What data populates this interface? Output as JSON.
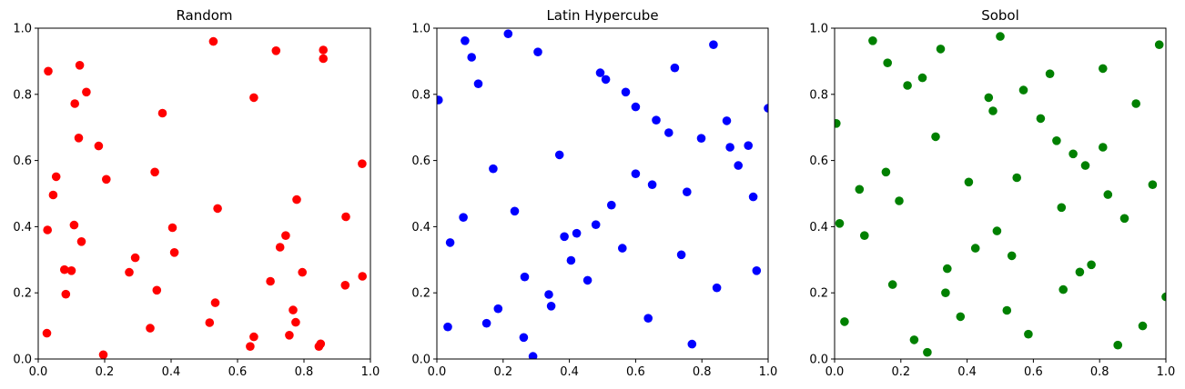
{
  "chart_data": [
    {
      "type": "scatter",
      "title": "Random",
      "color": "#ff0000",
      "xlim": [
        0,
        1
      ],
      "ylim": [
        0,
        1
      ],
      "xticks": [
        "0.0",
        "0.2",
        "0.4",
        "0.6",
        "0.8",
        "1.0"
      ],
      "yticks": [
        "0.0",
        "0.2",
        "0.4",
        "0.6",
        "0.8",
        "1.0"
      ],
      "grid": false,
      "points": [
        [
          0.03,
          0.87
        ],
        [
          0.125,
          0.888
        ],
        [
          0.145,
          0.807
        ],
        [
          0.11,
          0.772
        ],
        [
          0.122,
          0.668
        ],
        [
          0.054,
          0.551
        ],
        [
          0.045,
          0.496
        ],
        [
          0.028,
          0.39
        ],
        [
          0.108,
          0.405
        ],
        [
          0.13,
          0.355
        ],
        [
          0.079,
          0.27
        ],
        [
          0.1,
          0.267
        ],
        [
          0.083,
          0.196
        ],
        [
          0.026,
          0.078
        ],
        [
          0.196,
          0.013
        ],
        [
          0.182,
          0.644
        ],
        [
          0.205,
          0.543
        ],
        [
          0.527,
          0.96
        ],
        [
          0.716,
          0.932
        ],
        [
          0.858,
          0.934
        ],
        [
          0.858,
          0.908
        ],
        [
          0.649,
          0.79
        ],
        [
          0.374,
          0.743
        ],
        [
          0.351,
          0.565
        ],
        [
          0.54,
          0.455
        ],
        [
          0.404,
          0.397
        ],
        [
          0.41,
          0.322
        ],
        [
          0.292,
          0.306
        ],
        [
          0.274,
          0.262
        ],
        [
          0.357,
          0.208
        ],
        [
          0.337,
          0.093
        ],
        [
          0.533,
          0.17
        ],
        [
          0.516,
          0.11
        ],
        [
          0.649,
          0.067
        ],
        [
          0.638,
          0.038
        ],
        [
          0.778,
          0.482
        ],
        [
          0.745,
          0.373
        ],
        [
          0.728,
          0.338
        ],
        [
          0.795,
          0.262
        ],
        [
          0.699,
          0.235
        ],
        [
          0.767,
          0.148
        ],
        [
          0.775,
          0.111
        ],
        [
          0.756,
          0.072
        ],
        [
          0.85,
          0.046
        ],
        [
          0.845,
          0.038
        ],
        [
          0.975,
          0.59
        ],
        [
          0.926,
          0.43
        ],
        [
          0.976,
          0.25
        ],
        [
          0.924,
          0.223
        ]
      ]
    },
    {
      "type": "scatter",
      "title": "Latin Hypercube",
      "color": "#0000ff",
      "xlim": [
        0,
        1
      ],
      "ylim": [
        0,
        1
      ],
      "xticks": [
        "0.0",
        "0.2",
        "0.4",
        "0.6",
        "0.8",
        "1.0"
      ],
      "yticks": [
        "0.0",
        "0.2",
        "0.4",
        "0.6",
        "0.8",
        "1.0"
      ],
      "grid": false,
      "points": [
        [
          0.005,
          0.783
        ],
        [
          0.085,
          0.962
        ],
        [
          0.105,
          0.912
        ],
        [
          0.125,
          0.832
        ],
        [
          0.215,
          0.983
        ],
        [
          0.305,
          0.928
        ],
        [
          0.17,
          0.575
        ],
        [
          0.08,
          0.428
        ],
        [
          0.04,
          0.352
        ],
        [
          0.033,
          0.097
        ],
        [
          0.235,
          0.447
        ],
        [
          0.265,
          0.248
        ],
        [
          0.185,
          0.152
        ],
        [
          0.15,
          0.108
        ],
        [
          0.262,
          0.065
        ],
        [
          0.29,
          0.008
        ],
        [
          0.37,
          0.617
        ],
        [
          0.385,
          0.37
        ],
        [
          0.422,
          0.38
        ],
        [
          0.405,
          0.298
        ],
        [
          0.338,
          0.195
        ],
        [
          0.345,
          0.16
        ],
        [
          0.455,
          0.238
        ],
        [
          0.48,
          0.406
        ],
        [
          0.493,
          0.865
        ],
        [
          0.51,
          0.845
        ],
        [
          0.57,
          0.807
        ],
        [
          0.6,
          0.762
        ],
        [
          0.662,
          0.722
        ],
        [
          0.7,
          0.684
        ],
        [
          0.6,
          0.56
        ],
        [
          0.65,
          0.527
        ],
        [
          0.527,
          0.465
        ],
        [
          0.56,
          0.335
        ],
        [
          0.638,
          0.123
        ],
        [
          0.718,
          0.88
        ],
        [
          0.798,
          0.667
        ],
        [
          0.835,
          0.95
        ],
        [
          0.875,
          0.72
        ],
        [
          0.885,
          0.64
        ],
        [
          0.94,
          0.645
        ],
        [
          0.91,
          0.585
        ],
        [
          0.755,
          0.505
        ],
        [
          0.738,
          0.315
        ],
        [
          0.845,
          0.215
        ],
        [
          0.77,
          0.045
        ],
        [
          0.955,
          0.49
        ],
        [
          0.965,
          0.267
        ],
        [
          1.0,
          0.758
        ]
      ]
    },
    {
      "type": "scatter",
      "title": "Sobol",
      "color": "#008000",
      "xlim": [
        0,
        1
      ],
      "ylim": [
        0,
        1
      ],
      "xticks": [
        "0.0",
        "0.2",
        "0.4",
        "0.6",
        "0.8",
        "1.0"
      ],
      "yticks": [
        "0.0",
        "0.2",
        "0.4",
        "0.6",
        "0.8",
        "1.0"
      ],
      "grid": false,
      "points": [
        [
          0.115,
          0.962
        ],
        [
          0.5,
          0.975
        ],
        [
          0.32,
          0.937
        ],
        [
          0.98,
          0.95
        ],
        [
          0.16,
          0.895
        ],
        [
          0.265,
          0.85
        ],
        [
          0.22,
          0.827
        ],
        [
          0.65,
          0.862
        ],
        [
          0.81,
          0.878
        ],
        [
          0.465,
          0.79
        ],
        [
          0.478,
          0.75
        ],
        [
          0.57,
          0.813
        ],
        [
          0.005,
          0.712
        ],
        [
          0.622,
          0.727
        ],
        [
          0.91,
          0.772
        ],
        [
          0.305,
          0.672
        ],
        [
          0.67,
          0.66
        ],
        [
          0.72,
          0.62
        ],
        [
          0.81,
          0.64
        ],
        [
          0.757,
          0.585
        ],
        [
          0.155,
          0.565
        ],
        [
          0.075,
          0.513
        ],
        [
          0.195,
          0.478
        ],
        [
          0.405,
          0.535
        ],
        [
          0.55,
          0.548
        ],
        [
          0.96,
          0.527
        ],
        [
          0.825,
          0.497
        ],
        [
          0.685,
          0.458
        ],
        [
          0.875,
          0.425
        ],
        [
          0.015,
          0.41
        ],
        [
          0.09,
          0.373
        ],
        [
          0.49,
          0.387
        ],
        [
          0.425,
          0.335
        ],
        [
          0.535,
          0.312
        ],
        [
          0.34,
          0.273
        ],
        [
          0.775,
          0.285
        ],
        [
          0.74,
          0.263
        ],
        [
          0.175,
          0.225
        ],
        [
          0.335,
          0.2
        ],
        [
          0.69,
          0.21
        ],
        [
          0.38,
          0.128
        ],
        [
          0.52,
          0.147
        ],
        [
          0.93,
          0.1
        ],
        [
          1.0,
          0.188
        ],
        [
          0.03,
          0.113
        ],
        [
          0.585,
          0.075
        ],
        [
          0.24,
          0.058
        ],
        [
          0.855,
          0.042
        ],
        [
          0.28,
          0.02
        ]
      ]
    }
  ]
}
